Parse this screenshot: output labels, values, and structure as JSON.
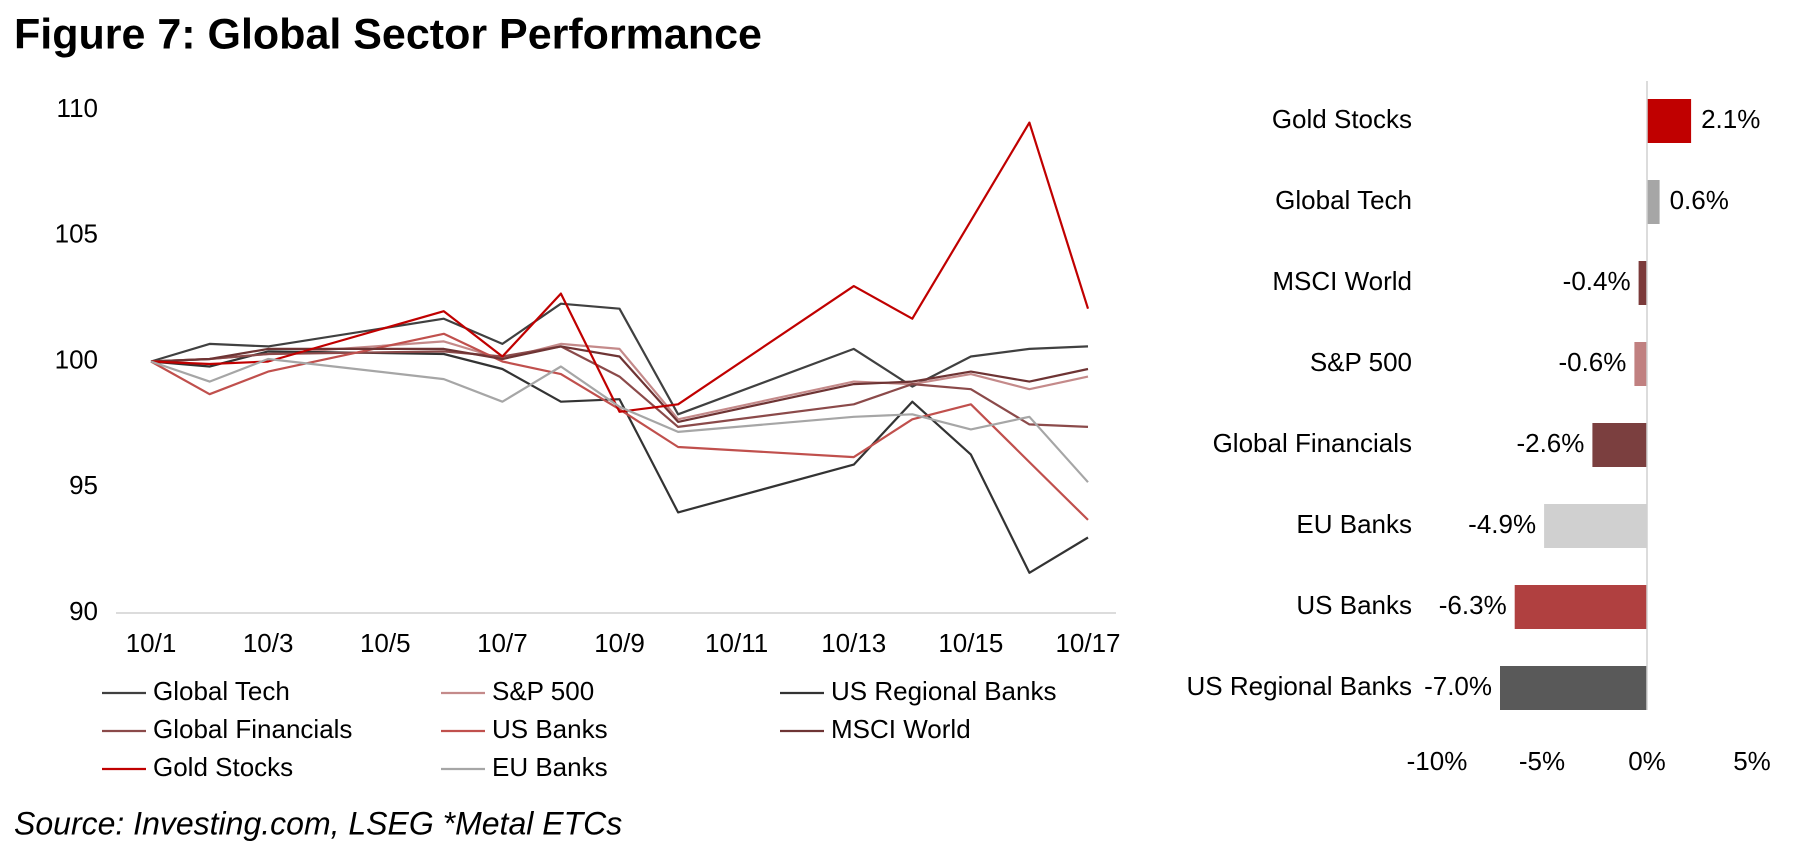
{
  "title": "Figure 7: Global Sector Performance",
  "source": "Source: Investing.com, LSEG *Metal ETCs",
  "chart_data": [
    {
      "type": "line",
      "x": [
        "10/1",
        "10/2",
        "10/3",
        "10/6",
        "10/7",
        "10/8",
        "10/9",
        "10/10",
        "10/13",
        "10/14",
        "10/15",
        "10/16",
        "10/17"
      ],
      "xlim": [
        "10/1",
        "10/17"
      ],
      "xticks": [
        "10/1",
        "10/3",
        "10/5",
        "10/7",
        "10/9",
        "10/11",
        "10/13",
        "10/15",
        "10/17"
      ],
      "ylim": [
        90,
        110
      ],
      "yticks": [
        90,
        95,
        100,
        105,
        110
      ],
      "series": [
        {
          "name": "Global Tech",
          "color": "#404040",
          "values": [
            100,
            100.7,
            100.6,
            101.7,
            100.7,
            102.3,
            102.1,
            97.9,
            100.5,
            99,
            100.2,
            100.5,
            100.6
          ]
        },
        {
          "name": "S&P 500",
          "color": "#c48a8a",
          "values": [
            100,
            100.1,
            100.3,
            100.8,
            100.1,
            100.7,
            100.5,
            97.7,
            99.2,
            99.1,
            99.5,
            98.9,
            99.4
          ]
        },
        {
          "name": "US Regional Banks",
          "color": "#333333",
          "values": [
            100,
            99.8,
            100.4,
            100.3,
            99.7,
            98.4,
            98.5,
            94,
            95.9,
            98.4,
            96.3,
            91.6,
            93
          ]
        },
        {
          "name": "Global Financials",
          "color": "#8b4a4a",
          "values": [
            100,
            100.1,
            100.3,
            100.4,
            100.2,
            100.6,
            99.4,
            97.4,
            98.3,
            99.1,
            98.9,
            97.5,
            97.4
          ]
        },
        {
          "name": "US Banks",
          "color": "#c0504d",
          "values": [
            100,
            98.7,
            99.6,
            101.1,
            100,
            99.5,
            98.1,
            96.6,
            96.2,
            97.7,
            98.3,
            96,
            93.7
          ]
        },
        {
          "name": "MSCI World",
          "color": "#6e3434",
          "values": [
            100,
            100.1,
            100.5,
            100.5,
            100.1,
            100.6,
            100.2,
            97.6,
            99.1,
            99.2,
            99.6,
            99.2,
            99.7
          ]
        },
        {
          "name": "Gold Stocks",
          "color": "#c00000",
          "values": [
            100,
            99.9,
            100,
            102,
            100.2,
            102.7,
            98,
            98.3,
            103,
            101.7,
            105.6,
            109.5,
            102.1
          ]
        },
        {
          "name": "EU Banks",
          "color": "#a6a6a6",
          "values": [
            100,
            99.2,
            100.1,
            99.3,
            98.4,
            99.8,
            98.2,
            97.2,
            97.8,
            97.9,
            97.3,
            97.8,
            95.2
          ]
        }
      ]
    },
    {
      "type": "hbar",
      "categories": [
        "Gold Stocks",
        "Global Tech",
        "MSCI World",
        "S&P 500",
        "Global Financials",
        "EU Banks",
        "US Banks",
        "US Regional Banks"
      ],
      "values": [
        2.1,
        0.6,
        -0.4,
        -0.6,
        -2.6,
        -4.9,
        -6.3,
        -7.0
      ],
      "value_labels": [
        "2.1%",
        "0.6%",
        "-0.4%",
        "-0.6%",
        "-2.6%",
        "-4.9%",
        "-6.3%",
        "-7.0%"
      ],
      "colors": [
        "#c00000",
        "#a6a6a6",
        "#7b3a3a",
        "#c08080",
        "#7b3f3f",
        "#d0d0d0",
        "#b04040",
        "#595959"
      ],
      "xlim": [
        -10,
        5
      ],
      "xticks": [
        {
          "value": -10,
          "label": "-10%"
        },
        {
          "value": -5,
          "label": "-5%"
        },
        {
          "value": 0,
          "label": "0%"
        },
        {
          "value": 5,
          "label": "5%"
        }
      ]
    }
  ]
}
